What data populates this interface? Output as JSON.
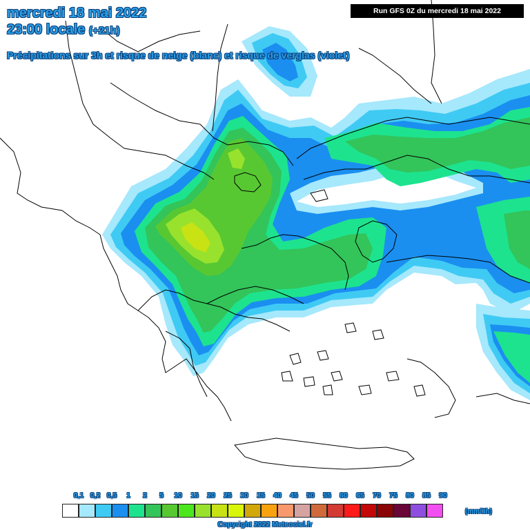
{
  "header": {
    "date_line": "mercredi 18 mai 2022",
    "time_line": "23:00 locale",
    "lead_time": "(+21h)",
    "subtitle": "Précipitations sur 3h et risque de neige (blanc) et risque de verglas (violet)",
    "run_info": "Run GFS 0Z du mercredi 18 mai 2022"
  },
  "legend": {
    "unit": "(mm/3h)",
    "labels": [
      "0,1",
      "0,2",
      "0,5",
      "1",
      "2",
      "5",
      "10",
      "15",
      "20",
      "25",
      "30",
      "35",
      "40",
      "45",
      "50",
      "55",
      "60",
      "65",
      "70",
      "75",
      "80",
      "85",
      "90"
    ],
    "colors": [
      "#ffffff",
      "#a6e8fc",
      "#3fcaf4",
      "#1a8ff0",
      "#1de38e",
      "#33c45a",
      "#58c832",
      "#4be61d",
      "#98e22d",
      "#c8e214",
      "#d9f50a",
      "#d2a70a",
      "#f9a20f",
      "#f8996d",
      "#d6a3a3",
      "#d06a3b",
      "#d23a33",
      "#ff1a1a",
      "#c40707",
      "#8a0505",
      "#6a0537",
      "#8e4fe0",
      "#f24ff0"
    ]
  },
  "map": {
    "precip_colors": {
      "trace": "#a6e8fc",
      "light": "#3fcaf4",
      "moderate": "#1a8ff0",
      "mod2": "#1de38e",
      "mod5": "#33c45a",
      "heavy10": "#58c832",
      "heavy20": "#98e22d",
      "heavy25": "#c8e214"
    }
  },
  "footer": {
    "copyright": "Copyright 2022 Meteociel.fr"
  }
}
